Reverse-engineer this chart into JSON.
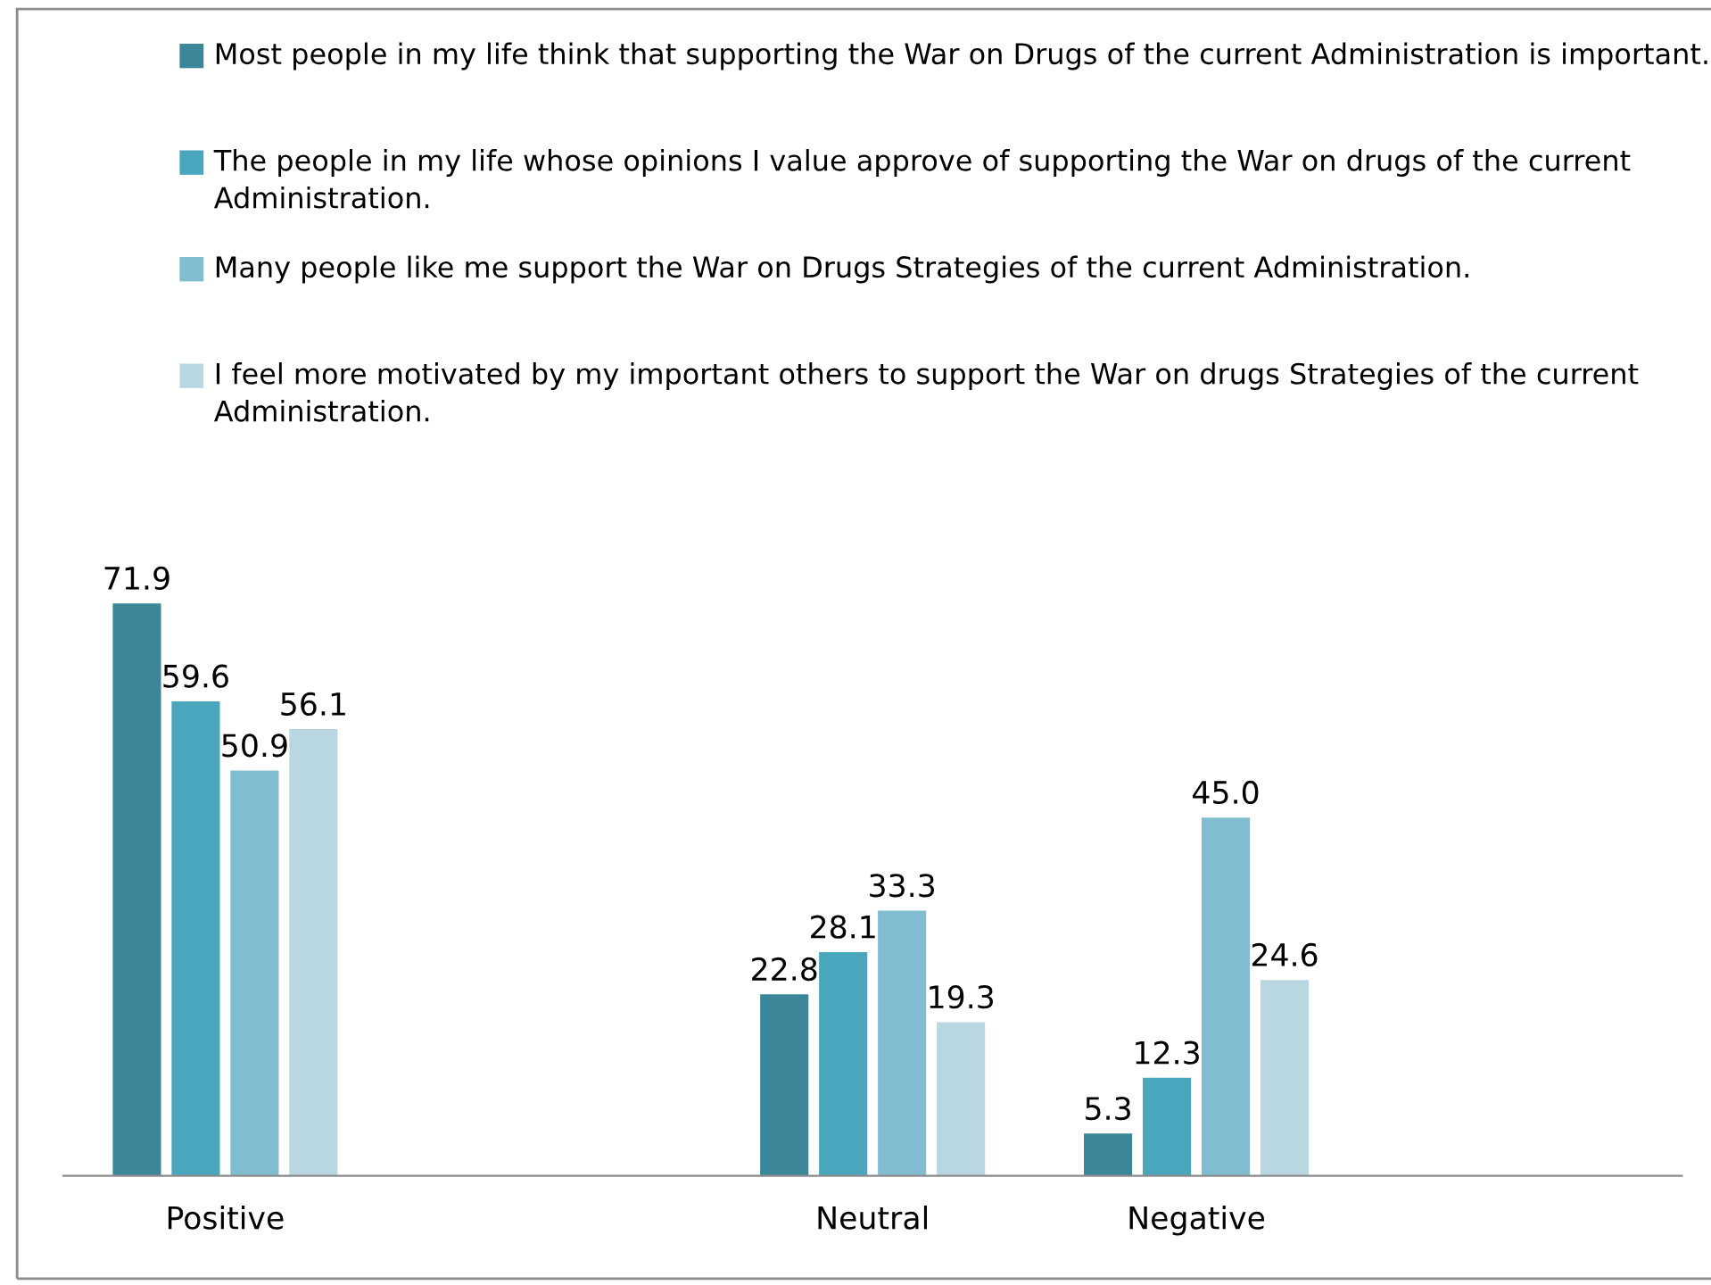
{
  "chart_data": {
    "type": "bar",
    "categories": [
      "Positive",
      null,
      "Neutral",
      "Negative",
      null
    ],
    "series": [
      {
        "name": "Most people in my life think that supporting the War on Drugs of the current Administration is important.",
        "color": "#3b8799",
        "values": [
          71.9,
          null,
          22.8,
          5.3,
          null
        ],
        "value_labels": [
          "71.9",
          null,
          "22.8",
          "5.3",
          null
        ]
      },
      {
        "name": "The people in my life whose opinions I value approve of supporting the War on drugs of the current Administration.",
        "color": "#4aa6bd",
        "values": [
          59.6,
          null,
          28.1,
          12.3,
          null
        ],
        "value_labels": [
          "59.6",
          null,
          "28.1",
          "12.3",
          null
        ]
      },
      {
        "name": "Many people like me support the War on Drugs Strategies of the current Administration.",
        "color": "#80bdd1",
        "values": [
          50.9,
          null,
          33.3,
          45.0,
          null
        ],
        "value_labels": [
          "50.9",
          null,
          "33.3",
          "45.0",
          null
        ]
      },
      {
        "name": "I feel more motivated by my important others to support the War on drugs Strategies of the current Administration.",
        "color": "#b8d7e0",
        "values": [
          56.1,
          null,
          19.3,
          24.6,
          null
        ],
        "value_labels": [
          "56.1",
          null,
          "19.3",
          "24.6",
          null
        ]
      }
    ],
    "legend": "top",
    "grid": false
  }
}
